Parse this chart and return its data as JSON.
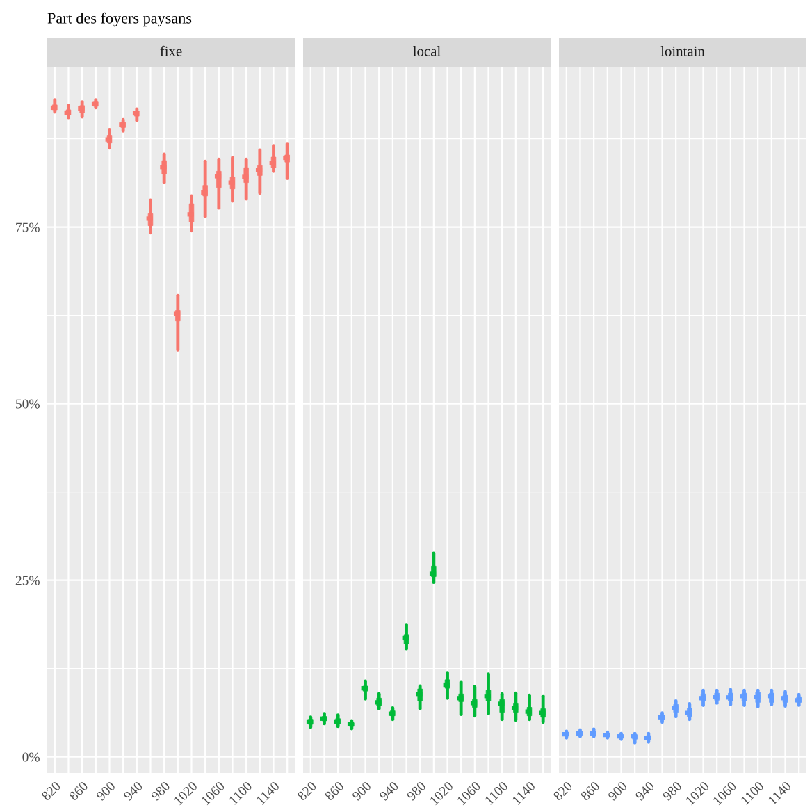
{
  "chart_data": [
    {
      "type": "box",
      "title": "fixe",
      "ylabel": "Part des foyers paysans",
      "categories": [
        "820",
        null,
        "860",
        null,
        "900",
        null,
        "940",
        null,
        "980",
        null,
        "1020",
        null,
        "1060",
        null,
        "1100",
        null,
        "1140",
        null
      ],
      "series": [
        {
          "color": "#f8766d",
          "boxes": [
            {
              "low": 91.3,
              "q1": 91.6,
              "median": 91.9,
              "q3": 92.3,
              "high": 93.0
            },
            {
              "low": 90.5,
              "q1": 90.9,
              "median": 91.2,
              "q3": 91.6,
              "high": 92.2
            },
            {
              "low": 90.6,
              "q1": 91.2,
              "median": 91.8,
              "q3": 92.2,
              "high": 92.7
            },
            {
              "low": 91.9,
              "q1": 92.1,
              "median": 92.4,
              "q3": 92.7,
              "high": 93.0
            },
            {
              "low": 86.2,
              "q1": 86.9,
              "median": 87.4,
              "q3": 88.0,
              "high": 88.8
            },
            {
              "low": 88.6,
              "q1": 89.1,
              "median": 89.5,
              "q3": 89.8,
              "high": 90.2
            },
            {
              "low": 90.1,
              "q1": 90.7,
              "median": 91.1,
              "q3": 91.4,
              "high": 91.7
            },
            {
              "low": 74.2,
              "q1": 75.2,
              "median": 76.2,
              "q3": 76.9,
              "high": 78.8
            },
            {
              "low": 81.3,
              "q1": 82.5,
              "median": 83.5,
              "q3": 84.4,
              "high": 85.3
            },
            {
              "low": 57.6,
              "q1": 61.7,
              "median": 62.7,
              "q3": 63.2,
              "high": 65.3
            },
            {
              "low": 74.5,
              "q1": 75.7,
              "median": 76.8,
              "q3": 78.3,
              "high": 79.4
            },
            {
              "low": 76.5,
              "q1": 79.4,
              "median": 79.9,
              "q3": 80.9,
              "high": 84.3
            },
            {
              "low": 77.7,
              "q1": 80.6,
              "median": 82.2,
              "q3": 82.9,
              "high": 84.6
            },
            {
              "low": 78.7,
              "q1": 80.4,
              "median": 81.3,
              "q3": 82.1,
              "high": 84.8
            },
            {
              "low": 79.0,
              "q1": 81.3,
              "median": 82.1,
              "q3": 83.4,
              "high": 84.6
            },
            {
              "low": 79.8,
              "q1": 82.3,
              "median": 83.1,
              "q3": 83.7,
              "high": 85.9
            },
            {
              "low": 82.9,
              "q1": 83.4,
              "median": 84.1,
              "q3": 84.9,
              "high": 86.5
            },
            {
              "low": 81.9,
              "q1": 84.2,
              "median": 84.8,
              "q3": 85.2,
              "high": 86.8
            }
          ]
        }
      ],
      "ylim": [
        -2.3,
        97.6
      ],
      "yticks": [
        {
          "value": 0,
          "label": "0%"
        },
        {
          "value": 25,
          "label": "25%"
        },
        {
          "value": 50,
          "label": "50%"
        },
        {
          "value": 75,
          "label": "75%"
        }
      ],
      "grid": true
    },
    {
      "type": "box",
      "title": "local",
      "categories": [
        "820",
        null,
        "860",
        null,
        "900",
        null,
        "940",
        null,
        "980",
        null,
        "1020",
        null,
        "1060",
        null,
        "1100",
        null,
        "1140",
        null
      ],
      "series": [
        {
          "color": "#00ba38",
          "boxes": [
            {
              "low": 4.2,
              "q1": 4.6,
              "median": 5.0,
              "q3": 5.3,
              "high": 5.6
            },
            {
              "low": 4.7,
              "q1": 5.1,
              "median": 5.4,
              "q3": 5.7,
              "high": 6.1
            },
            {
              "low": 4.3,
              "q1": 4.7,
              "median": 5.0,
              "q3": 5.4,
              "high": 5.9
            },
            {
              "low": 4.0,
              "q1": 4.3,
              "median": 4.6,
              "q3": 4.8,
              "high": 5.1
            },
            {
              "low": 8.2,
              "q1": 9.3,
              "median": 9.7,
              "q3": 10.0,
              "high": 10.7
            },
            {
              "low": 6.8,
              "q1": 7.2,
              "median": 7.7,
              "q3": 8.3,
              "high": 8.9
            },
            {
              "low": 5.3,
              "q1": 5.8,
              "median": 6.1,
              "q3": 6.5,
              "high": 6.9
            },
            {
              "low": 15.3,
              "q1": 16.0,
              "median": 16.8,
              "q3": 17.3,
              "high": 18.7
            },
            {
              "low": 6.8,
              "q1": 7.9,
              "median": 8.9,
              "q3": 9.6,
              "high": 10.0
            },
            {
              "low": 24.7,
              "q1": 25.5,
              "median": 25.9,
              "q3": 27.0,
              "high": 28.8
            },
            {
              "low": 8.3,
              "q1": 9.7,
              "median": 10.2,
              "q3": 10.9,
              "high": 11.9
            },
            {
              "low": 6.0,
              "q1": 7.8,
              "median": 8.3,
              "q3": 8.9,
              "high": 10.6
            },
            {
              "low": 5.8,
              "q1": 7.0,
              "median": 7.6,
              "q3": 8.1,
              "high": 9.9
            },
            {
              "low": 6.1,
              "q1": 7.9,
              "median": 8.6,
              "q3": 9.4,
              "high": 11.7
            },
            {
              "low": 5.3,
              "q1": 6.3,
              "median": 7.5,
              "q3": 8.1,
              "high": 8.9
            },
            {
              "low": 5.2,
              "q1": 6.3,
              "median": 6.9,
              "q3": 7.6,
              "high": 9.0
            },
            {
              "low": 5.3,
              "q1": 5.8,
              "median": 6.4,
              "q3": 7.0,
              "high": 8.7
            },
            {
              "low": 4.9,
              "q1": 5.6,
              "median": 6.2,
              "q3": 6.8,
              "high": 8.6
            }
          ]
        }
      ],
      "ylim": [
        -2.3,
        97.6
      ],
      "yticks": [
        0,
        25,
        50,
        75
      ],
      "tick_labels": "x",
      "grid": true
    },
    {
      "type": "box",
      "title": "lointain",
      "categories": [
        "820",
        null,
        "860",
        null,
        "900",
        null,
        "940",
        null,
        "980",
        null,
        "1020",
        null,
        "1060",
        null,
        "1100",
        null,
        "1140",
        null
      ],
      "series": [
        {
          "color": "#619cff",
          "boxes": [
            {
              "low": 2.7,
              "q1": 3.0,
              "median": 3.2,
              "q3": 3.4,
              "high": 3.6
            },
            {
              "low": 2.9,
              "q1": 3.1,
              "median": 3.3,
              "q3": 3.6,
              "high": 3.8
            },
            {
              "low": 2.9,
              "q1": 3.1,
              "median": 3.3,
              "q3": 3.6,
              "high": 3.9
            },
            {
              "low": 2.7,
              "q1": 2.9,
              "median": 3.1,
              "q3": 3.3,
              "high": 3.5
            },
            {
              "low": 2.5,
              "q1": 2.7,
              "median": 2.9,
              "q3": 3.1,
              "high": 3.3
            },
            {
              "low": 2.0,
              "q1": 2.5,
              "median": 2.9,
              "q3": 3.1,
              "high": 3.3
            },
            {
              "low": 2.1,
              "q1": 2.4,
              "median": 2.7,
              "q3": 3.0,
              "high": 3.3
            },
            {
              "low": 4.9,
              "q1": 5.3,
              "median": 5.6,
              "q3": 5.9,
              "high": 6.2
            },
            {
              "low": 5.7,
              "q1": 6.3,
              "median": 6.9,
              "q3": 7.4,
              "high": 7.9
            },
            {
              "low": 5.3,
              "q1": 5.7,
              "median": 6.2,
              "q3": 6.9,
              "high": 7.5
            },
            {
              "low": 7.3,
              "q1": 7.9,
              "median": 8.3,
              "q3": 8.9,
              "high": 9.4
            },
            {
              "low": 7.6,
              "q1": 8.0,
              "median": 8.5,
              "q3": 9.0,
              "high": 9.4
            },
            {
              "low": 7.4,
              "q1": 7.9,
              "median": 8.4,
              "q3": 9.0,
              "high": 9.5
            },
            {
              "low": 7.3,
              "q1": 7.9,
              "median": 8.6,
              "q3": 9.0,
              "high": 9.4
            },
            {
              "low": 7.1,
              "q1": 7.7,
              "median": 8.5,
              "q3": 9.1,
              "high": 9.4
            },
            {
              "low": 7.4,
              "q1": 7.7,
              "median": 8.6,
              "q3": 9.0,
              "high": 9.4
            },
            {
              "low": 7.2,
              "q1": 7.7,
              "median": 8.3,
              "q3": 8.8,
              "high": 9.2
            },
            {
              "low": 7.3,
              "q1": 7.7,
              "median": 8.0,
              "q3": 8.5,
              "high": 8.8
            }
          ]
        }
      ],
      "ylim": [
        -2.3,
        97.6
      ],
      "yticks": [
        0,
        25,
        50,
        75
      ],
      "tick_labels": "x",
      "grid": true
    }
  ]
}
